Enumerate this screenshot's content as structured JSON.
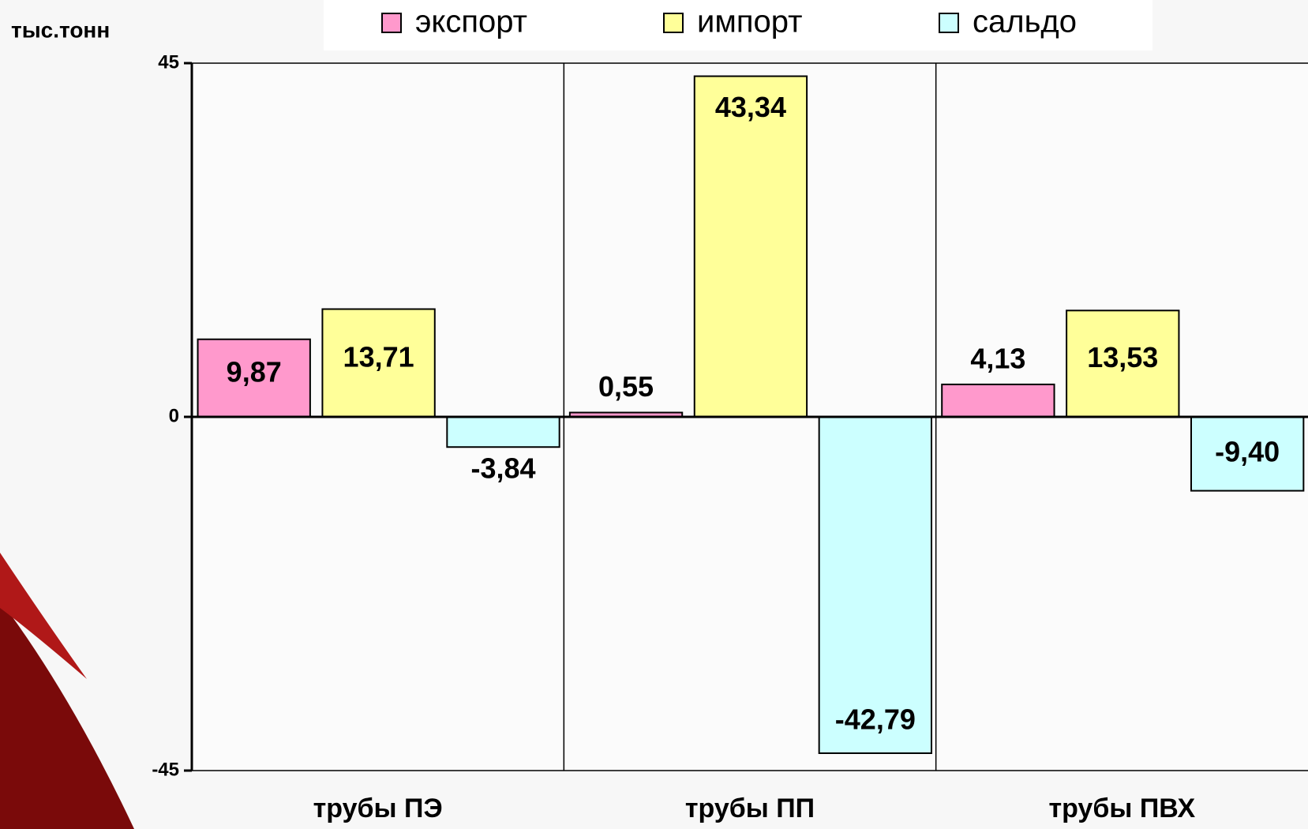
{
  "chart_data": {
    "type": "bar",
    "y_label": "тыс.тонн",
    "categories": [
      "трубы ПЭ",
      "трубы ПП",
      "трубы ПВХ"
    ],
    "series": [
      {
        "name": "экспорт",
        "color": "#ff99cc",
        "values": [
          9.87,
          0.55,
          4.13
        ],
        "value_labels": [
          "9,87",
          "0,55",
          "4,13"
        ]
      },
      {
        "name": "импорт",
        "color": "#ffff99",
        "values": [
          13.71,
          43.34,
          13.53
        ],
        "value_labels": [
          "13,71",
          "43,34",
          "13,53"
        ]
      },
      {
        "name": "сальдо",
        "color": "#ccffff",
        "values": [
          -3.84,
          -42.79,
          -9.4
        ],
        "value_labels": [
          "-3,84",
          "-42,79",
          "-9,40"
        ]
      }
    ],
    "ylim": [
      -45,
      45
    ],
    "yticks": [
      -45,
      0,
      45
    ],
    "legend": "top"
  }
}
